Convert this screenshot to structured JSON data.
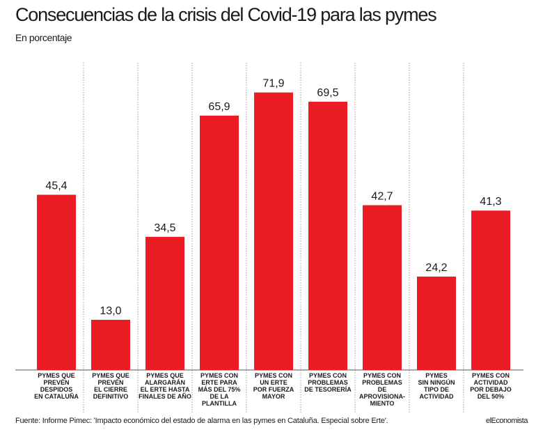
{
  "header": {
    "title": "Consecuencias de la crisis del Covid-19 para las pymes",
    "subtitle": "En porcentaje"
  },
  "footer": {
    "source": "Fuente:  Informe Pimec: 'Impacto económico del estado de alarma en las pymes en Cataluña. Especial sobre Erte'.",
    "brand": "elEconomista"
  },
  "colors": {
    "bar": "#ec1c24",
    "axis": "#555555",
    "divider": "#999999"
  },
  "chart_data": {
    "type": "bar",
    "title": "Consecuencias de la crisis del Covid-19 para las pymes",
    "subtitle": "En porcentaje",
    "categories": [
      [
        "PYMES QUE",
        "PREVÉN",
        "DESPIDOS",
        "EN CATALUÑA"
      ],
      [
        "PYMES QUE",
        "PREVÉN",
        "EL CIERRE",
        "DEFINITIVO"
      ],
      [
        "PYMES QUE",
        "ALARGARÁN",
        "EL ERTE HASTA",
        "FINALES DE AÑO"
      ],
      [
        "PYMES CON",
        "ERTE PARA",
        "MÁS DEL 75%",
        "DE LA",
        "PLANTILLA"
      ],
      [
        "PYMES CON",
        "UN ERTE",
        "POR FUERZA",
        "MAYOR"
      ],
      [
        "PYMES CON",
        "PROBLEMAS",
        "DE TESORERÍA"
      ],
      [
        "PYMES CON",
        "PROBLEMAS",
        "DE",
        "APROVISIONA-",
        "MIENTO"
      ],
      [
        "PYMES",
        "SIN NINGÚN",
        "TIPO DE",
        "ACTIVIDAD"
      ],
      [
        "PYMES CON",
        "ACTIVIDAD",
        "POR DEBAJO",
        "DEL 50%"
      ]
    ],
    "values": [
      45.4,
      13.0,
      34.5,
      65.9,
      71.9,
      69.5,
      42.7,
      24.2,
      41.3
    ],
    "value_labels": [
      "45,4",
      "13,0",
      "34,5",
      "65,9",
      "71,9",
      "69,5",
      "42,7",
      "24,2",
      "41,3"
    ],
    "ylim": [
      0,
      76
    ],
    "grid": false,
    "xlabel": "",
    "ylabel": ""
  }
}
